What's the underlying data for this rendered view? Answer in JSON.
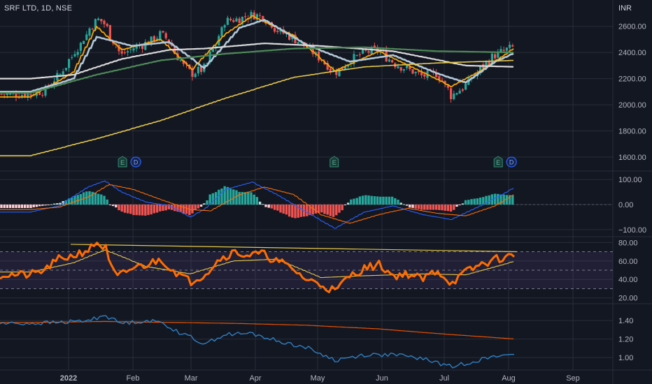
{
  "header": {
    "symbol_line": "SRF LTD, 1D, NSE",
    "currency": "INR"
  },
  "colors": {
    "background": "#131722",
    "grid": "#2a2e39",
    "axis_text": "#b2b5be",
    "up_candle": "#26a69a",
    "down_candle": "#ef5350",
    "ma_fast": "#f7a600",
    "ma_medium": "#b2c7d6",
    "ma_slow": "#d9d9d9",
    "ma_100": "#4e8a57",
    "ma_200": "#e6c84a",
    "macd": "#2962ff",
    "macd_signal": "#ff6d00",
    "rsi": "#ff6d00",
    "rsi_ma": "#e6c84a",
    "ratio": "#2f7fc1",
    "ratio_ma": "#e65100"
  },
  "events": {
    "earnings_label": "E",
    "dividend_label": "D"
  },
  "chart_data": [
    {
      "type": "candlestick",
      "panel": "price",
      "yticks": [
        "1600.00",
        "1800.00",
        "2000.00",
        "2200.00",
        "2400.00",
        "2600.00"
      ],
      "ylim": [
        1520,
        2780
      ],
      "xticks": [
        "2022",
        "Feb",
        "Mar",
        "Apr",
        "May",
        "Jun",
        "Jul",
        "Aug",
        "Sep"
      ],
      "close_path": [
        [
          "2021-12-13",
          2080
        ],
        [
          "2021-12-20",
          2110
        ],
        [
          "2021-12-27",
          2230
        ],
        [
          "2022-01-03",
          2390
        ],
        [
          "2022-01-10",
          2560
        ],
        [
          "2022-01-14",
          2660
        ],
        [
          "2022-01-18",
          2620
        ],
        [
          "2022-01-21",
          2520
        ],
        [
          "2022-01-26",
          2380
        ],
        [
          "2022-01-31",
          2430
        ],
        [
          "2022-02-07",
          2470
        ],
        [
          "2022-02-14",
          2540
        ],
        [
          "2022-02-18",
          2480
        ],
        [
          "2022-02-24",
          2310
        ],
        [
          "2022-03-01",
          2240
        ],
        [
          "2022-03-07",
          2280
        ],
        [
          "2022-03-11",
          2420
        ],
        [
          "2022-03-17",
          2640
        ],
        [
          "2022-03-24",
          2660
        ],
        [
          "2022-03-30",
          2690
        ],
        [
          "2022-04-05",
          2670
        ],
        [
          "2022-04-11",
          2570
        ],
        [
          "2022-04-19",
          2510
        ],
        [
          "2022-04-25",
          2440
        ],
        [
          "2022-05-02",
          2350
        ],
        [
          "2022-05-09",
          2240
        ],
        [
          "2022-05-16",
          2340
        ],
        [
          "2022-05-23",
          2400
        ],
        [
          "2022-05-30",
          2420
        ],
        [
          "2022-06-06",
          2320
        ],
        [
          "2022-06-13",
          2270
        ],
        [
          "2022-06-20",
          2220
        ],
        [
          "2022-06-27",
          2240
        ],
        [
          "2022-07-04",
          2070
        ],
        [
          "2022-07-11",
          2150
        ],
        [
          "2022-07-18",
          2280
        ],
        [
          "2022-07-25",
          2380
        ],
        [
          "2022-08-01",
          2430
        ],
        [
          "2022-08-04",
          2450
        ]
      ],
      "moving_averages": [
        {
          "key": "ma_fast",
          "values": [
            [
              "2021-12-13",
              2060
            ],
            [
              "2022-01-03",
              2250
            ],
            [
              "2022-01-14",
              2600
            ],
            [
              "2022-01-26",
              2420
            ],
            [
              "2022-02-14",
              2500
            ],
            [
              "2022-03-01",
              2270
            ],
            [
              "2022-03-17",
              2540
            ],
            [
              "2022-03-30",
              2680
            ],
            [
              "2022-04-19",
              2530
            ],
            [
              "2022-05-09",
              2260
            ],
            [
              "2022-05-30",
              2410
            ],
            [
              "2022-06-20",
              2250
            ],
            [
              "2022-07-04",
              2140
            ],
            [
              "2022-07-18",
              2260
            ],
            [
              "2022-08-04",
              2440
            ]
          ]
        },
        {
          "key": "ma_medium",
          "values": [
            [
              "2021-12-13",
              2100
            ],
            [
              "2022-01-03",
              2200
            ],
            [
              "2022-01-14",
              2520
            ],
            [
              "2022-01-31",
              2450
            ],
            [
              "2022-02-18",
              2480
            ],
            [
              "2022-03-07",
              2280
            ],
            [
              "2022-03-24",
              2590
            ],
            [
              "2022-04-05",
              2650
            ],
            [
              "2022-04-25",
              2460
            ],
            [
              "2022-05-16",
              2330
            ],
            [
              "2022-06-06",
              2380
            ],
            [
              "2022-06-27",
              2240
            ],
            [
              "2022-07-11",
              2170
            ],
            [
              "2022-07-25",
              2330
            ],
            [
              "2022-08-04",
              2400
            ]
          ]
        },
        {
          "key": "ma_slow",
          "values": [
            [
              "2021-12-13",
              2200
            ],
            [
              "2022-01-03",
              2230
            ],
            [
              "2022-01-26",
              2350
            ],
            [
              "2022-02-18",
              2420
            ],
            [
              "2022-03-07",
              2430
            ],
            [
              "2022-04-05",
              2470
            ],
            [
              "2022-05-02",
              2450
            ],
            [
              "2022-06-06",
              2410
            ],
            [
              "2022-07-11",
              2300
            ],
            [
              "2022-08-04",
              2290
            ]
          ]
        },
        {
          "key": "ma_100",
          "values": [
            [
              "2021-12-13",
              2090
            ],
            [
              "2022-01-14",
              2230
            ],
            [
              "2022-02-14",
              2340
            ],
            [
              "2022-03-17",
              2390
            ],
            [
              "2022-04-19",
              2430
            ],
            [
              "2022-05-23",
              2440
            ],
            [
              "2022-06-27",
              2410
            ],
            [
              "2022-08-04",
              2400
            ]
          ]
        },
        {
          "key": "ma_200",
          "values": [
            [
              "2021-12-13",
              1610
            ],
            [
              "2022-01-14",
              1740
            ],
            [
              "2022-02-14",
              1880
            ],
            [
              "2022-03-17",
              2050
            ],
            [
              "2022-04-19",
              2210
            ],
            [
              "2022-05-23",
              2290
            ],
            [
              "2022-06-27",
              2320
            ],
            [
              "2022-08-04",
              2340
            ]
          ]
        }
      ],
      "event_markers": [
        {
          "date": "2022-01-27",
          "labels": [
            "E",
            "D"
          ]
        },
        {
          "date": "2022-05-09",
          "labels": [
            "E"
          ]
        },
        {
          "date": "2022-07-27",
          "labels": [
            "E",
            "D"
          ]
        }
      ]
    },
    {
      "type": "macd",
      "panel": "macd",
      "yticks": [
        "−100.00",
        "0.00",
        "100.00"
      ],
      "ylim": [
        -120,
        120
      ],
      "macd": [
        [
          "2021-12-13",
          -30
        ],
        [
          "2021-12-27",
          -5
        ],
        [
          "2022-01-10",
          70
        ],
        [
          "2022-01-18",
          95
        ],
        [
          "2022-01-26",
          50
        ],
        [
          "2022-02-07",
          10
        ],
        [
          "2022-02-18",
          -5
        ],
        [
          "2022-02-28",
          -50
        ],
        [
          "2022-03-07",
          -20
        ],
        [
          "2022-03-17",
          60
        ],
        [
          "2022-03-30",
          90
        ],
        [
          "2022-04-11",
          40
        ],
        [
          "2022-04-25",
          -30
        ],
        [
          "2022-05-09",
          -95
        ],
        [
          "2022-05-23",
          -30
        ],
        [
          "2022-06-06",
          -5
        ],
        [
          "2022-06-20",
          -40
        ],
        [
          "2022-07-04",
          -60
        ],
        [
          "2022-07-18",
          -5
        ],
        [
          "2022-08-04",
          70
        ]
      ],
      "signal": [
        [
          "2021-12-13",
          -20
        ],
        [
          "2021-12-27",
          -10
        ],
        [
          "2022-01-10",
          30
        ],
        [
          "2022-01-20",
          80
        ],
        [
          "2022-02-01",
          60
        ],
        [
          "2022-02-14",
          20
        ],
        [
          "2022-02-28",
          -20
        ],
        [
          "2022-03-10",
          -25
        ],
        [
          "2022-03-24",
          40
        ],
        [
          "2022-04-05",
          70
        ],
        [
          "2022-04-19",
          40
        ],
        [
          "2022-05-02",
          -40
        ],
        [
          "2022-05-16",
          -75
        ],
        [
          "2022-05-30",
          -40
        ],
        [
          "2022-06-13",
          -15
        ],
        [
          "2022-06-27",
          -35
        ],
        [
          "2022-07-11",
          -45
        ],
        [
          "2022-07-25",
          -5
        ],
        [
          "2022-08-04",
          45
        ]
      ]
    },
    {
      "type": "rsi",
      "panel": "rsi",
      "yticks": [
        "20.00",
        "40.00",
        "60.00",
        "80.00"
      ],
      "ylim": [
        16,
        84
      ],
      "band": [
        30,
        70
      ],
      "rsi": [
        [
          "2021-12-13",
          45
        ],
        [
          "2021-12-20",
          50
        ],
        [
          "2021-12-27",
          62
        ],
        [
          "2022-01-03",
          66
        ],
        [
          "2022-01-10",
          72
        ],
        [
          "2022-01-14",
          80
        ],
        [
          "2022-01-18",
          74
        ],
        [
          "2022-01-20",
          58
        ],
        [
          "2022-01-24",
          42
        ],
        [
          "2022-01-31",
          52
        ],
        [
          "2022-02-07",
          56
        ],
        [
          "2022-02-14",
          62
        ],
        [
          "2022-02-21",
          48
        ],
        [
          "2022-02-28",
          38
        ],
        [
          "2022-03-07",
          45
        ],
        [
          "2022-03-14",
          62
        ],
        [
          "2022-03-21",
          70
        ],
        [
          "2022-03-28",
          66
        ],
        [
          "2022-04-04",
          68
        ],
        [
          "2022-04-11",
          60
        ],
        [
          "2022-04-18",
          52
        ],
        [
          "2022-04-25",
          40
        ],
        [
          "2022-05-02",
          35
        ],
        [
          "2022-05-09",
          27
        ],
        [
          "2022-05-16",
          44
        ],
        [
          "2022-05-23",
          52
        ],
        [
          "2022-05-30",
          56
        ],
        [
          "2022-06-06",
          44
        ],
        [
          "2022-06-13",
          46
        ],
        [
          "2022-06-20",
          40
        ],
        [
          "2022-06-27",
          50
        ],
        [
          "2022-07-04",
          36
        ],
        [
          "2022-07-11",
          48
        ],
        [
          "2022-07-18",
          56
        ],
        [
          "2022-07-25",
          62
        ],
        [
          "2022-08-04",
          66
        ]
      ],
      "rsi_ma": [
        [
          "2021-12-13",
          48
        ],
        [
          "2022-01-03",
          58
        ],
        [
          "2022-01-18",
          72
        ],
        [
          "2022-02-07",
          54
        ],
        [
          "2022-02-28",
          46
        ],
        [
          "2022-03-21",
          60
        ],
        [
          "2022-04-11",
          62
        ],
        [
          "2022-05-02",
          42
        ],
        [
          "2022-05-23",
          44
        ],
        [
          "2022-06-20",
          46
        ],
        [
          "2022-07-11",
          45
        ],
        [
          "2022-08-04",
          60
        ]
      ],
      "trend_line": [
        [
          "2022-01-02",
          78
        ],
        [
          "2022-08-05",
          70
        ]
      ]
    },
    {
      "type": "line",
      "panel": "ratio",
      "yticks": [
        "1.00",
        "1.20",
        "1.40"
      ],
      "ylim": [
        0.88,
        1.56
      ],
      "series": [
        {
          "key": "ratio",
          "values": [
            [
              "2021-12-13",
              1.37
            ],
            [
              "2021-12-27",
              1.38
            ],
            [
              "2022-01-10",
              1.4
            ],
            [
              "2022-01-18",
              1.46
            ],
            [
              "2022-01-26",
              1.37
            ],
            [
              "2022-02-07",
              1.4
            ],
            [
              "2022-02-14",
              1.38
            ],
            [
              "2022-02-24",
              1.26
            ],
            [
              "2022-03-07",
              1.15
            ],
            [
              "2022-03-17",
              1.25
            ],
            [
              "2022-03-30",
              1.26
            ],
            [
              "2022-04-11",
              1.18
            ],
            [
              "2022-04-25",
              1.11
            ],
            [
              "2022-05-09",
              0.97
            ],
            [
              "2022-05-23",
              1.03
            ],
            [
              "2022-06-06",
              1.03
            ],
            [
              "2022-06-20",
              0.99
            ],
            [
              "2022-07-04",
              0.9
            ],
            [
              "2022-07-18",
              0.98
            ],
            [
              "2022-08-04",
              1.05
            ]
          ]
        },
        {
          "key": "ratio_ma",
          "values": [
            [
              "2021-12-13",
              1.38
            ],
            [
              "2022-01-18",
              1.39
            ],
            [
              "2022-02-18",
              1.38
            ],
            [
              "2022-03-21",
              1.37
            ],
            [
              "2022-04-25",
              1.35
            ],
            [
              "2022-05-30",
              1.31
            ],
            [
              "2022-06-27",
              1.26
            ],
            [
              "2022-08-04",
              1.2
            ]
          ]
        }
      ]
    }
  ]
}
